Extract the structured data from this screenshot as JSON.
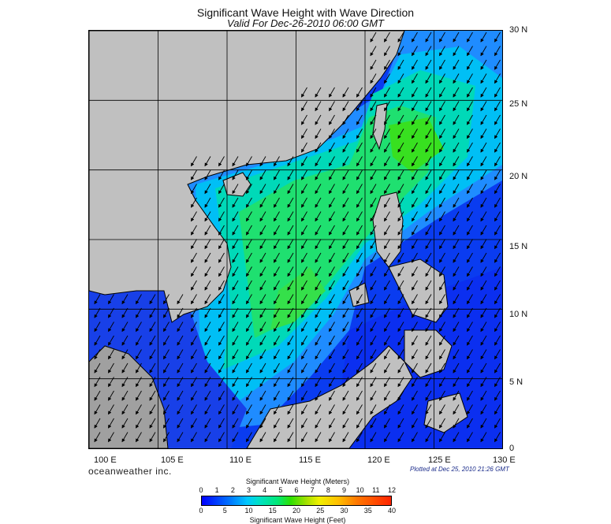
{
  "header": {
    "title": "Significant Wave Height with Wave Direction",
    "subtitle": "Valid For Dec-26-2010 06:00 GMT"
  },
  "map": {
    "lon_range": [
      100,
      130
    ],
    "lat_range": [
      0,
      30
    ],
    "lon_labels": [
      "100 E",
      "105 E",
      "110 E",
      "115 E",
      "120 E",
      "125 E",
      "130 E"
    ],
    "lat_labels": [
      "30 N",
      "25 N",
      "20 N",
      "15 N",
      "10 N",
      "5 N",
      "0"
    ],
    "land_color": "#c0c0c0",
    "arrow_direction": "toward southwest",
    "grid_spacing_deg": 5
  },
  "footer": {
    "brand": "oceanweather inc.",
    "plotted": "Plotted at Dec 25, 2010 21:26 GMT"
  },
  "colorbar": {
    "title_top": "Significant Wave Height (Meters)",
    "title_bottom": "Significant Wave Height (Feet)",
    "meter_ticks": [
      "0",
      "1",
      "2",
      "3",
      "4",
      "5",
      "6",
      "7",
      "8",
      "9",
      "10",
      "11",
      "12"
    ],
    "feet_ticks": [
      "0",
      "5",
      "10",
      "15",
      "20",
      "25",
      "30",
      "35",
      "40"
    ],
    "meters_max": 12,
    "feet_max": 40
  }
}
